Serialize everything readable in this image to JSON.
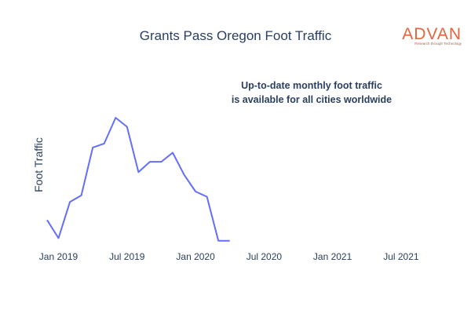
{
  "chart_data": {
    "type": "line",
    "title": "Grants Pass Oregon Foot Traffic",
    "xlabel": "",
    "ylabel": "Foot Traffic",
    "x_tick_labels": [
      "Jan 2019",
      "Jul 2019",
      "Jan 2020",
      "Jul 2020",
      "Jan 2021",
      "Jul 2021"
    ],
    "x_range": [
      "2018-12-01",
      "2021-09-01"
    ],
    "y_range": [
      0,
      100
    ],
    "grid": false,
    "legend": "none",
    "annotation": [
      "Up-to-date monthly foot traffic",
      "is available for all cities worldwide"
    ],
    "series": [
      {
        "color": "#636efa",
        "x": [
          "2018-12",
          "2019-01",
          "2019-02",
          "2019-03",
          "2019-04",
          "2019-05",
          "2019-06",
          "2019-07",
          "2019-08",
          "2019-09",
          "2019-10",
          "2019-11",
          "2019-12",
          "2020-01",
          "2020-02",
          "2020-03",
          "2020-04"
        ],
        "y": [
          18,
          4,
          32,
          37,
          74,
          77,
          97,
          90,
          55,
          63,
          63,
          70,
          53,
          40,
          36,
          2,
          2
        ]
      }
    ]
  },
  "logo": {
    "name": "ADVAN",
    "tagline": "Research through Technology",
    "color": "#e8633a"
  }
}
